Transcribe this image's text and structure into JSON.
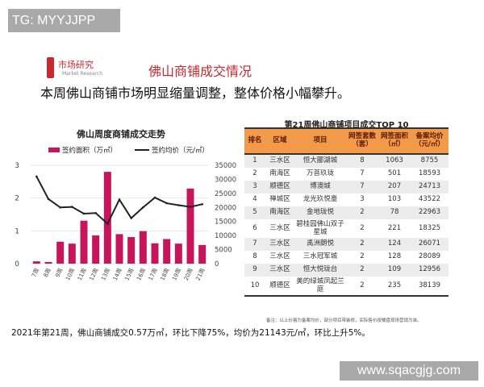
{
  "watermark_top": "TG: MYYJJPP",
  "watermark_bottom": "www.sqacgjg.com",
  "logo": {
    "cn": "市场研究",
    "en": "Market Research"
  },
  "section_title": "佛山商铺成交情况",
  "headline": "本周佛山商铺市场明显缩量调整，整体价格小幅攀升。",
  "colors": {
    "bar": "#c8145a",
    "line": "#222222",
    "table_header": "#f39a4a",
    "brand": "#c8282e"
  },
  "chart_data": {
    "type": "bar+line",
    "title": "佛山周度商铺成交走势",
    "categories": [
      "7周",
      "8周",
      "9周",
      "10周",
      "11周",
      "12周",
      "13周",
      "14周",
      "15周",
      "16周",
      "17周",
      "18周",
      "19周",
      "20周",
      "21周"
    ],
    "series": [
      {
        "name": "签约面积（万㎡）",
        "type": "bar",
        "axis": "left",
        "values": [
          0.07,
          0.05,
          0.67,
          0.61,
          1.31,
          0.86,
          2.8,
          0.9,
          0.81,
          0.99,
          0.62,
          0.75,
          0.61,
          2.29,
          0.57
        ]
      },
      {
        "name": "签约均价（元/㎡）",
        "type": "line",
        "axis": "right",
        "values": [
          31000,
          23000,
          20000,
          20200,
          17800,
          18000,
          14200,
          22800,
          16200,
          20000,
          23500,
          21500,
          20800,
          20200,
          21143
        ]
      }
    ],
    "y_left": {
      "lim": [
        0,
        3
      ],
      "ticks": [
        "0",
        "1",
        "2",
        "3"
      ]
    },
    "y_right": {
      "lim": [
        0,
        35000
      ],
      "ticks": [
        "0",
        "5000",
        "10000",
        "15000",
        "20000",
        "25000",
        "30000",
        "35000"
      ]
    },
    "grid": true,
    "legend": "top"
  },
  "table": {
    "title": "第21周佛山商铺项目成交TOP 10",
    "headers": [
      "排名",
      "区域",
      "项目",
      "网签套数（套）",
      "网签面积（㎡）",
      "备案均价（元/㎡）"
    ],
    "rows": [
      [
        "1",
        "三水区",
        "恒大郦湖城",
        "8",
        "1063",
        "8755"
      ],
      [
        "2",
        "南海区",
        "万菩玖珑",
        "7",
        "501",
        "18593"
      ],
      [
        "3",
        "顺德区",
        "博澳城",
        "7",
        "207",
        "24713"
      ],
      [
        "4",
        "禅城区",
        "龙光玖悦臺",
        "3",
        "103",
        "43522"
      ],
      [
        "5",
        "南海区",
        "金地珑悦",
        "2",
        "78",
        "22963"
      ],
      [
        "6",
        "三水区",
        "碧桂园佛山双子星城",
        "2",
        "221",
        "18325"
      ],
      [
        "7",
        "三水区",
        "禹洲朗悦",
        "2",
        "124",
        "26071"
      ],
      [
        "8",
        "三水区",
        "三水冠军城",
        "2",
        "128",
        "28089"
      ],
      [
        "9",
        "三水区",
        "恒大悦珑台",
        "2",
        "109",
        "12956"
      ],
      [
        "10",
        "顺德区",
        "美的绿城凤起兰庭",
        "2",
        "235",
        "38139"
      ]
    ],
    "note": "备注：以上价格为备案均价，部分项目带装修，实际售价按楼盘现场营销为准。"
  },
  "summary": "2021年第21周，佛山商铺成交0.57万㎡，环比下降75%，均价为21143元/㎡，环比上升5%。"
}
